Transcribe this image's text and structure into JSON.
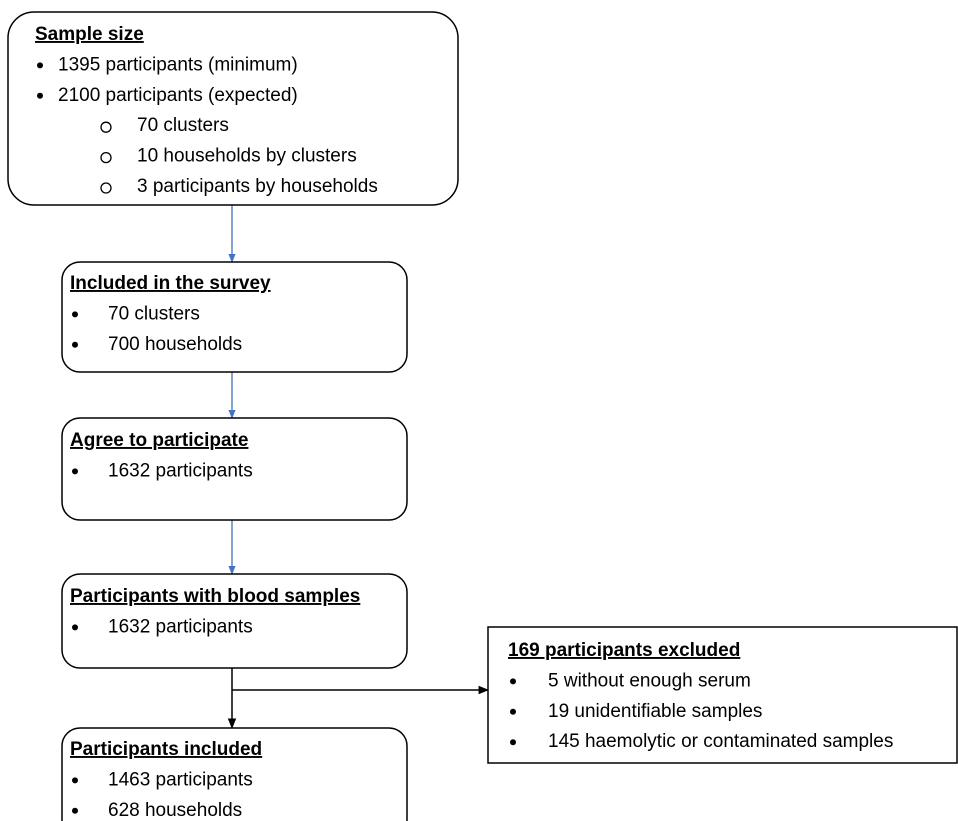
{
  "nodes": [
    {
      "title": "Sample size",
      "items": [
        "1395 participants (minimum)",
        "2100 participants (expected)"
      ],
      "subitems": [
        "70 clusters",
        "10 households by clusters",
        "3 participants by households"
      ]
    },
    {
      "title": "Included in the survey",
      "items": [
        "70 clusters",
        "700 households"
      ]
    },
    {
      "title": "Agree to participate",
      "items": [
        "1632 participants"
      ]
    },
    {
      "title": "Participants with blood samples",
      "items": [
        "1632 participants"
      ]
    },
    {
      "title": "169 participants excluded",
      "items": [
        "5 without enough serum",
        "19 unidentifiable samples",
        "145 haemolytic or contaminated samples"
      ]
    },
    {
      "title": "Participants included",
      "items": [
        "1463 participants",
        "628 households"
      ]
    }
  ]
}
